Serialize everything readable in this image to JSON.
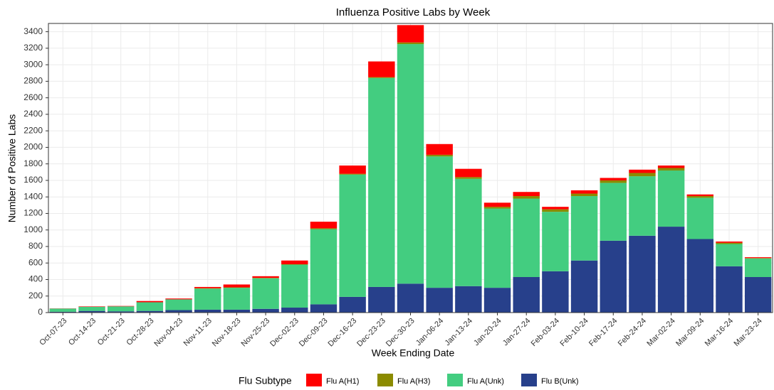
{
  "chart_data": {
    "type": "stacked_bar",
    "title": "Influenza Positive Labs by Week",
    "x_label": "Week Ending Date",
    "y_label": "Number of Positive Labs",
    "legend_title": "Flu Subtype",
    "categories": [
      "Oct-07-23",
      "Oct-14-23",
      "Oct-21-23",
      "Oct-28-23",
      "Nov-04-23",
      "Nov-11-23",
      "Nov-18-23",
      "Nov-25-23",
      "Dec-02-23",
      "Dec-09-23",
      "Dec-16-23",
      "Dec-23-23",
      "Dec-30-23",
      "Jan-06-24",
      "Jan-13-24",
      "Jan-20-24",
      "Jan-27-24",
      "Feb-03-24",
      "Feb-10-24",
      "Feb-17-24",
      "Feb-24-24",
      "Mar-02-24",
      "Mar-09-24",
      "Mar-16-24",
      "Mar-23-24"
    ],
    "series": [
      {
        "name": "Flu A(H1)",
        "color": "#ff0000",
        "values": [
          2,
          5,
          5,
          15,
          10,
          15,
          35,
          20,
          45,
          80,
          100,
          190,
          210,
          130,
          100,
          50,
          50,
          30,
          40,
          30,
          40,
          30,
          20,
          15,
          10
        ]
      },
      {
        "name": "Flu A(H3)",
        "color": "#8b8b00",
        "values": [
          0,
          0,
          0,
          0,
          0,
          5,
          5,
          5,
          5,
          10,
          10,
          10,
          20,
          20,
          20,
          20,
          30,
          30,
          30,
          30,
          40,
          30,
          20,
          15,
          5
        ]
      },
      {
        "name": "Flu A(Unk)",
        "color": "#43cd80",
        "values": [
          38,
          50,
          60,
          105,
          130,
          255,
          265,
          370,
          520,
          910,
          1480,
          2530,
          2900,
          1590,
          1300,
          960,
          950,
          720,
          780,
          700,
          720,
          680,
          500,
          270,
          225
        ]
      },
      {
        "name": "Flu B(Unk)",
        "color": "#27408b",
        "values": [
          10,
          20,
          15,
          20,
          30,
          35,
          35,
          45,
          60,
          100,
          190,
          310,
          350,
          300,
          320,
          300,
          430,
          500,
          630,
          870,
          930,
          1040,
          890,
          560,
          430
        ]
      }
    ],
    "ylim": [
      0,
      3500
    ],
    "yticks": [
      0,
      200,
      400,
      600,
      800,
      1000,
      1200,
      1400,
      1600,
      1800,
      2000,
      2200,
      2400,
      2600,
      2800,
      3000,
      3200,
      3400
    ],
    "grid": true,
    "legend_position": "bottom"
  }
}
